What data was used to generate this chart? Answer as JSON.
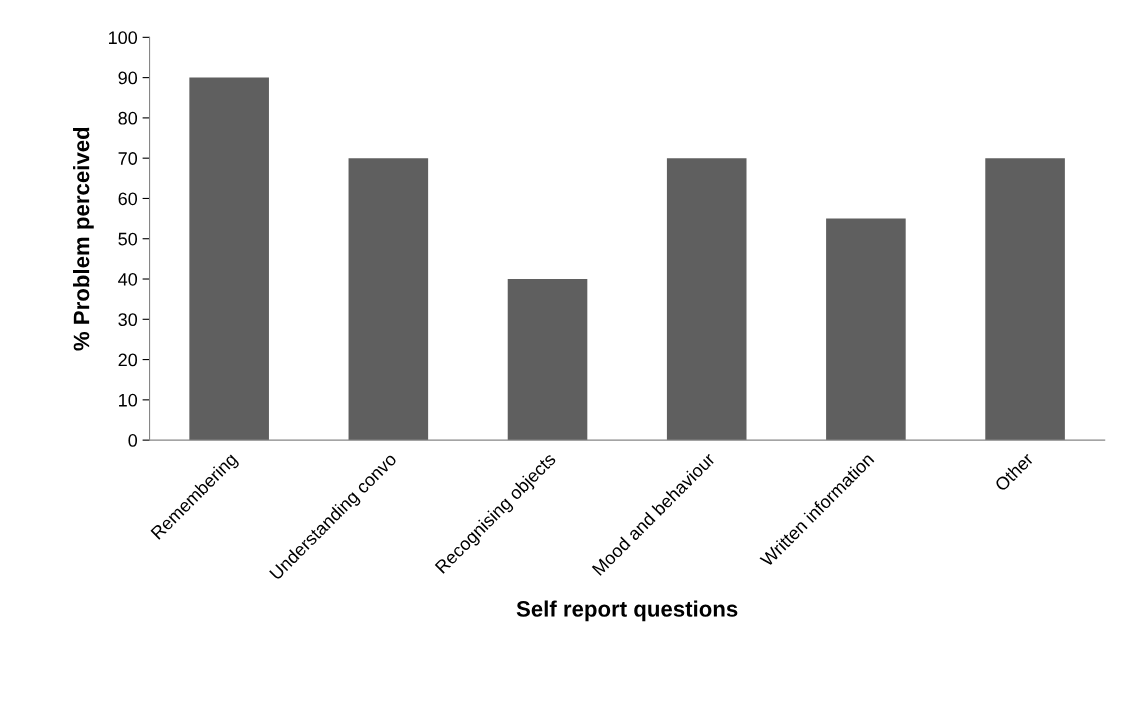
{
  "chart_data": {
    "type": "bar",
    "xlabel": "Self report questions",
    "ylabel": "% Problem perceived",
    "categories": [
      "Remembering",
      "Understanding convo",
      "Recognising objects",
      "Mood and behaviour",
      "Written information",
      "Other"
    ],
    "values": [
      90,
      70,
      40,
      70,
      55,
      70
    ],
    "color": "#5f5f5f",
    "ylim": [
      0,
      100
    ],
    "yticks": [
      0,
      10,
      20,
      30,
      40,
      50,
      60,
      70,
      80,
      90,
      100
    ],
    "grid": false,
    "legend": false
  }
}
